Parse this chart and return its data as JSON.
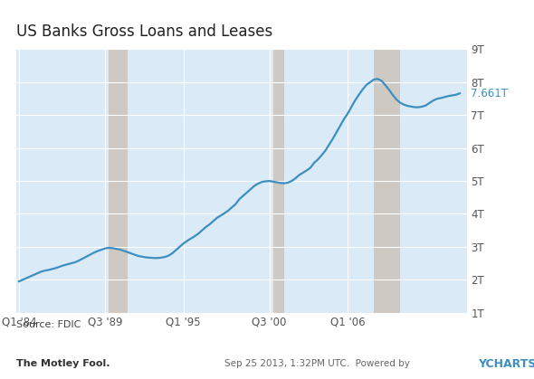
{
  "title": "US Banks Gross Loans and Leases",
  "source_text": "Source: FDIC",
  "footer_date_text": "Sep 25 2013, 1:32PM UTC.  Powered by",
  "footer_ycharts": "YCHARTS",
  "last_value_label": "7.661T",
  "plot_bg_color": "#daeaf6",
  "outer_bg_color": "#ffffff",
  "line_color": "#3d8fc0",
  "line_width": 1.6,
  "ylim": [
    1000000000000.0,
    9000000000000.0
  ],
  "yticks": [
    1000000000000.0,
    2000000000000.0,
    3000000000000.0,
    4000000000000.0,
    5000000000000.0,
    6000000000000.0,
    7000000000000.0,
    8000000000000.0,
    9000000000000.0
  ],
  "ytick_labels": [
    "1T",
    "2T",
    "3T",
    "4T",
    "5T",
    "6T",
    "7T",
    "8T",
    "9T"
  ],
  "shade_regions": [
    {
      "xstart": 1990.0,
      "xend": 1991.25
    },
    {
      "xstart": 2001.0,
      "xend": 2001.75
    },
    {
      "xstart": 2007.75,
      "xend": 2009.5
    }
  ],
  "shade_color": "#cec9c2",
  "xtick_positions": [
    1984.0,
    1989.75,
    1995.0,
    2000.75,
    2006.0
  ],
  "xtick_labels": [
    "Q1 '84",
    "Q3 '89",
    "Q1 '95",
    "Q3 '00",
    "Q1 '06"
  ],
  "xmin": 1983.8,
  "xmax": 2014.0,
  "data_x": [
    1984.0,
    1984.25,
    1984.5,
    1984.75,
    1985.0,
    1985.25,
    1985.5,
    1985.75,
    1986.0,
    1986.25,
    1986.5,
    1986.75,
    1987.0,
    1987.25,
    1987.5,
    1987.75,
    1988.0,
    1988.25,
    1988.5,
    1988.75,
    1989.0,
    1989.25,
    1989.5,
    1989.75,
    1990.0,
    1990.25,
    1990.5,
    1990.75,
    1991.0,
    1991.25,
    1991.5,
    1991.75,
    1992.0,
    1992.25,
    1992.5,
    1992.75,
    1993.0,
    1993.25,
    1993.5,
    1993.75,
    1994.0,
    1994.25,
    1994.5,
    1994.75,
    1995.0,
    1995.25,
    1995.5,
    1995.75,
    1996.0,
    1996.25,
    1996.5,
    1996.75,
    1997.0,
    1997.25,
    1997.5,
    1997.75,
    1998.0,
    1998.25,
    1998.5,
    1998.75,
    1999.0,
    1999.25,
    1999.5,
    1999.75,
    2000.0,
    2000.25,
    2000.5,
    2000.75,
    2001.0,
    2001.25,
    2001.5,
    2001.75,
    2002.0,
    2002.25,
    2002.5,
    2002.75,
    2003.0,
    2003.25,
    2003.5,
    2003.75,
    2004.0,
    2004.25,
    2004.5,
    2004.75,
    2005.0,
    2005.25,
    2005.5,
    2005.75,
    2006.0,
    2006.25,
    2006.5,
    2006.75,
    2007.0,
    2007.25,
    2007.5,
    2007.75,
    2008.0,
    2008.25,
    2008.5,
    2008.75,
    2009.0,
    2009.25,
    2009.5,
    2009.75,
    2010.0,
    2010.25,
    2010.5,
    2010.75,
    2011.0,
    2011.25,
    2011.5,
    2011.75,
    2012.0,
    2012.25,
    2012.5,
    2012.75,
    2013.0,
    2013.25,
    2013.5
  ],
  "data_y": [
    1950000000000.0,
    2000000000000.0,
    2050000000000.0,
    2100000000000.0,
    2150000000000.0,
    2200000000000.0,
    2250000000000.0,
    2280000000000.0,
    2300000000000.0,
    2330000000000.0,
    2360000000000.0,
    2400000000000.0,
    2440000000000.0,
    2470000000000.0,
    2500000000000.0,
    2530000000000.0,
    2580000000000.0,
    2640000000000.0,
    2700000000000.0,
    2760000000000.0,
    2820000000000.0,
    2870000000000.0,
    2910000000000.0,
    2950000000000.0,
    2970000000000.0,
    2960000000000.0,
    2940000000000.0,
    2920000000000.0,
    2880000000000.0,
    2840000000000.0,
    2800000000000.0,
    2760000000000.0,
    2720000000000.0,
    2700000000000.0,
    2680000000000.0,
    2670000000000.0,
    2660000000000.0,
    2660000000000.0,
    2670000000000.0,
    2690000000000.0,
    2730000000000.0,
    2800000000000.0,
    2900000000000.0,
    3000000000000.0,
    3100000000000.0,
    3180000000000.0,
    3250000000000.0,
    3320000000000.0,
    3400000000000.0,
    3500000000000.0,
    3600000000000.0,
    3680000000000.0,
    3780000000000.0,
    3880000000000.0,
    3950000000000.0,
    4020000000000.0,
    4100000000000.0,
    4200000000000.0,
    4300000000000.0,
    4450000000000.0,
    4550000000000.0,
    4650000000000.0,
    4750000000000.0,
    4850000000000.0,
    4920000000000.0,
    4970000000000.0,
    4990000000000.0,
    5000000000000.0,
    4980000000000.0,
    4960000000000.0,
    4940000000000.0,
    4930000000000.0,
    4950000000000.0,
    5000000000000.0,
    5080000000000.0,
    5180000000000.0,
    5250000000000.0,
    5320000000000.0,
    5400000000000.0,
    5550000000000.0,
    5650000000000.0,
    5780000000000.0,
    5920000000000.0,
    6100000000000.0,
    6280000000000.0,
    6480000000000.0,
    6680000000000.0,
    6880000000000.0,
    7050000000000.0,
    7250000000000.0,
    7450000000000.0,
    7620000000000.0,
    7780000000000.0,
    7920000000000.0,
    8000000000000.0,
    8080000000000.0,
    8100000000000.0,
    8050000000000.0,
    7920000000000.0,
    7780000000000.0,
    7620000000000.0,
    7480000000000.0,
    7380000000000.0,
    7320000000000.0,
    7280000000000.0,
    7260000000000.0,
    7240000000000.0,
    7240000000000.0,
    7260000000000.0,
    7300000000000.0,
    7380000000000.0,
    7450000000000.0,
    7500000000000.0,
    7520000000000.0,
    7550000000000.0,
    7580000000000.0,
    7600000000000.0,
    7620000000000.0,
    7661000000000.0
  ]
}
